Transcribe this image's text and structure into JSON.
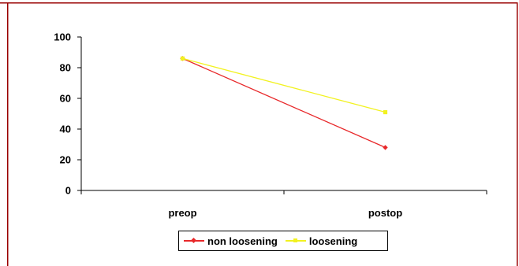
{
  "colors": {
    "frame": "#990000",
    "axis": "#000000",
    "non_loosening": "#e8282a",
    "loosening": "#f2f220"
  },
  "chart_data": {
    "type": "line",
    "title": "",
    "xlabel": "",
    "ylabel": "",
    "categories": [
      "preop",
      "postop"
    ],
    "ylim": [
      0,
      100
    ],
    "yticks": [
      0,
      20,
      40,
      60,
      80,
      100
    ],
    "ytick_labels": [
      "0",
      "20",
      "40",
      "60",
      "80",
      "100"
    ],
    "grid": false,
    "legend_position": "bottom",
    "series": [
      {
        "name": "non loosening",
        "values": [
          86,
          28
        ],
        "color": "#e8282a",
        "marker": "diamond"
      },
      {
        "name": "loosening",
        "values": [
          86,
          51
        ],
        "color": "#f2f220",
        "marker": "square"
      }
    ]
  }
}
